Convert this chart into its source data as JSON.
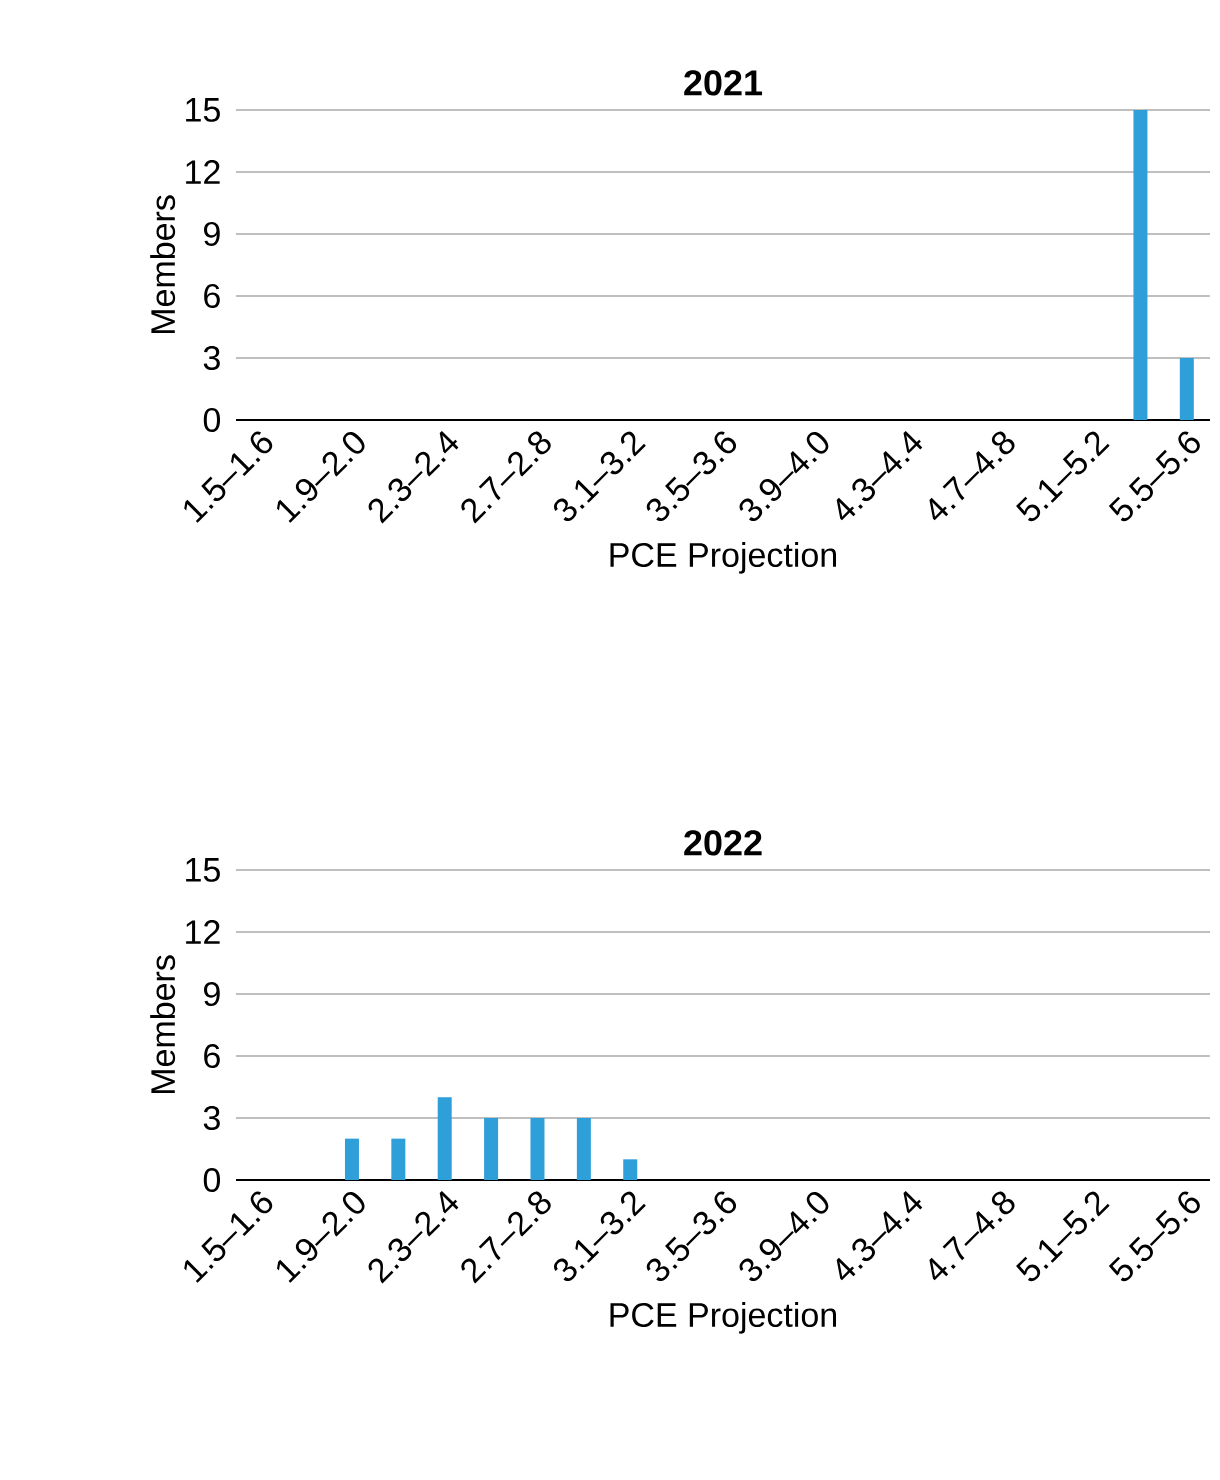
{
  "chart_data": [
    {
      "type": "bar",
      "title": "2021",
      "xlabel": "PCE Projection",
      "ylabel": "Members",
      "categories": [
        "1.5–1.6",
        null,
        "1.9–2.0",
        null,
        "2.3–2.4",
        null,
        "2.7–2.8",
        null,
        "3.1–3.2",
        null,
        "3.5–3.6",
        null,
        "3.9–4.0",
        null,
        "4.3–4.4",
        null,
        "4.7–4.8",
        null,
        "5.1–5.2",
        null,
        "5.5–5.6"
      ],
      "values": [
        0,
        0,
        0,
        0,
        0,
        0,
        0,
        0,
        0,
        0,
        0,
        0,
        0,
        0,
        0,
        0,
        0,
        0,
        0,
        15,
        3
      ],
      "color": "#2e9fd9",
      "ylim": [
        0,
        15
      ],
      "yticks": [
        0,
        3,
        6,
        9,
        12,
        15
      ],
      "grid": "y"
    },
    {
      "type": "bar",
      "title": "2022",
      "xlabel": "PCE Projection",
      "ylabel": "Members",
      "categories": [
        "1.5–1.6",
        null,
        "1.9–2.0",
        null,
        "2.3–2.4",
        null,
        "2.7–2.8",
        null,
        "3.1–3.2",
        null,
        "3.5–3.6",
        null,
        "3.9–4.0",
        null,
        "4.3–4.4",
        null,
        "4.7–4.8",
        null,
        "5.1–5.2",
        null,
        "5.5–5.6"
      ],
      "values": [
        0,
        0,
        2,
        2,
        4,
        3,
        3,
        3,
        1,
        0,
        0,
        0,
        0,
        0,
        0,
        0,
        0,
        0,
        0,
        0,
        0
      ],
      "color": "#2e9fd9",
      "ylim": [
        0,
        15
      ],
      "yticks": [
        0,
        3,
        6,
        9,
        12,
        15
      ],
      "grid": "y"
    }
  ]
}
